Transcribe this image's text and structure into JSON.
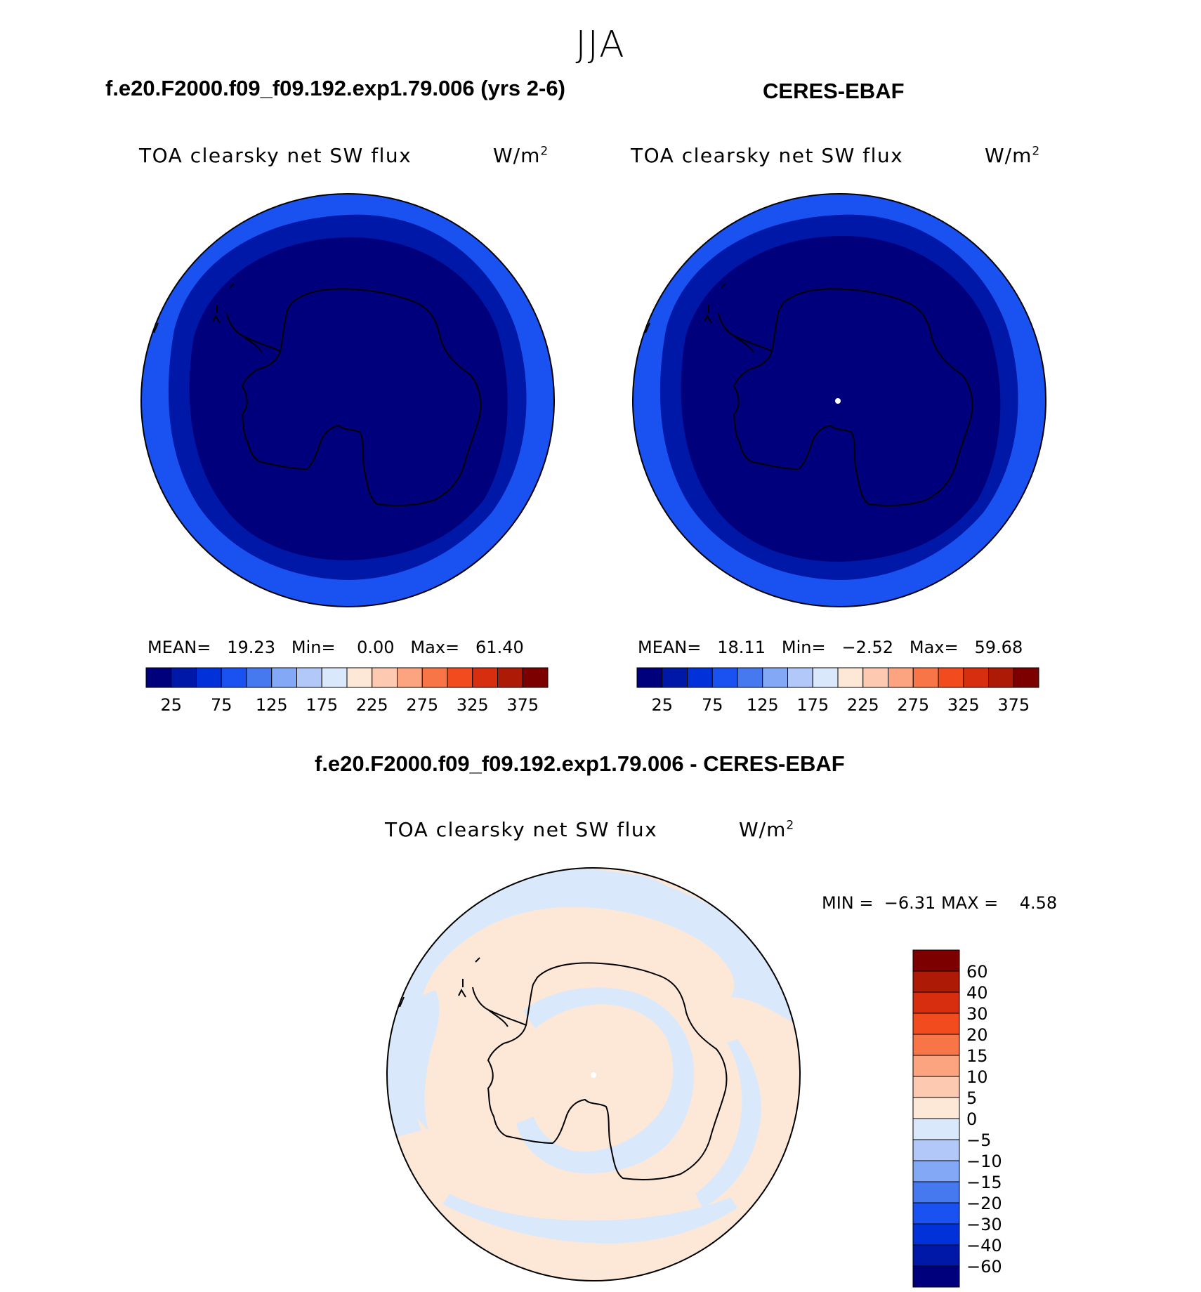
{
  "title": "JJA",
  "panels": [
    {
      "title": "f.e20.F2000.f09_f09.192.exp1.79.006 (yrs 2-6)",
      "variable": "TOA clearsky net SW flux",
      "units_base": "W/m",
      "units_exp": "2",
      "stats": {
        "mean_label": "MEAN=",
        "mean": "19.23",
        "min_label": "Min=",
        "min": "0.00",
        "max_label": "Max=",
        "max": "61.40"
      }
    },
    {
      "title": "CERES-EBAF",
      "variable": "TOA clearsky net SW flux",
      "units_base": "W/m",
      "units_exp": "2",
      "stats": {
        "mean_label": "MEAN=",
        "mean": "18.11",
        "min_label": "Min=",
        "min": "−2.52",
        "max_label": "Max=",
        "max": "59.68"
      }
    }
  ],
  "diff_panel": {
    "title": "f.e20.F2000.f09_f09.192.exp1.79.006 - CERES-EBAF",
    "variable": "TOA clearsky net SW flux",
    "units_base": "W/m",
    "units_exp": "2",
    "stats": {
      "min_label": "MIN =",
      "min": "−6.31",
      "max_label": "MAX =",
      "max": "4.58"
    }
  },
  "colorbar_main": {
    "colors": [
      "#00007d",
      "#0018a8",
      "#0131d8",
      "#1a52f2",
      "#4678f0",
      "#82a8f6",
      "#b2c8f8",
      "#d9e9fb",
      "#fde8d8",
      "#fdc9b0",
      "#fca37f",
      "#f87548",
      "#f24c1e",
      "#d62e0e",
      "#ad1a06",
      "#7d0000"
    ],
    "labels": [
      "25",
      "75",
      "125",
      "175",
      "225",
      "275",
      "325",
      "375"
    ]
  },
  "colorbar_diff": {
    "colors": [
      "#00007d",
      "#0018a8",
      "#0131d8",
      "#1a52f2",
      "#4678f0",
      "#82a8f6",
      "#b2c8f8",
      "#d9e9fb",
      "#fde8d8",
      "#fdc9b0",
      "#fca37f",
      "#f87548",
      "#f24c1e",
      "#d62e0e",
      "#ad1a06",
      "#7d0000"
    ],
    "labels": [
      "60",
      "40",
      "30",
      "20",
      "15",
      "10",
      "5",
      "0",
      "−5",
      "−10",
      "−15",
      "−20",
      "−30",
      "−40",
      "−60"
    ]
  },
  "map_colors": {
    "outer_ring": "#1a52f2",
    "mid_ring": "#0018a8",
    "interior": "#00007d",
    "diff_positive": "#fde8d8",
    "diff_negative": "#d9e9fb"
  }
}
